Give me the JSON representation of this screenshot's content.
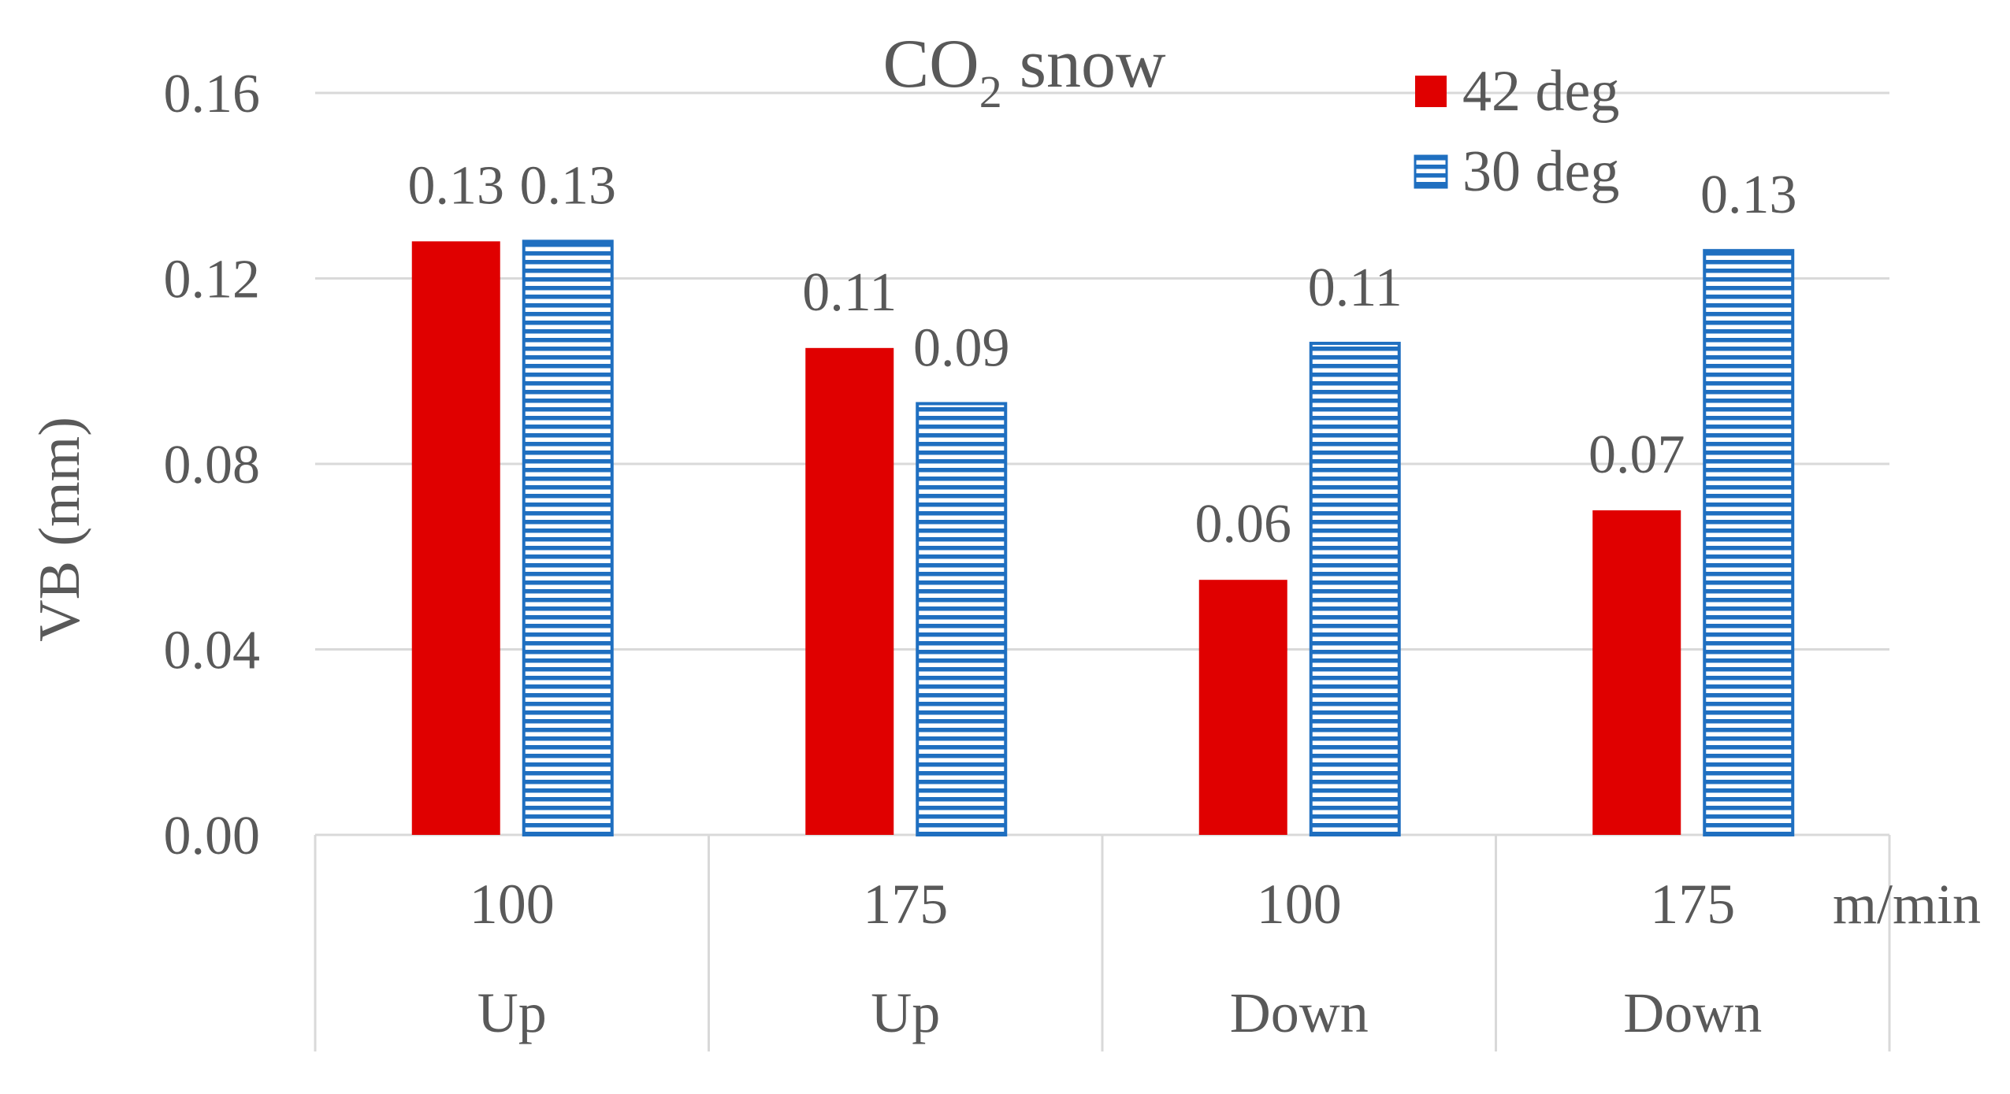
{
  "chart_data": {
    "type": "bar",
    "title": "CO",
    "title_subscript": "2",
    "title_suffix": " snow",
    "ylabel": "VB (mm)",
    "xlabel": "m/min",
    "ylim": [
      0,
      0.16
    ],
    "yticks": [
      "0.00",
      "0.04",
      "0.08",
      "0.12",
      "0.16"
    ],
    "ytick_values": [
      0,
      0.04,
      0.08,
      0.12,
      0.16
    ],
    "grid": true,
    "legend_position": "top-right",
    "categories": [
      {
        "speed": "100",
        "direction": "Up"
      },
      {
        "speed": "175",
        "direction": "Up"
      },
      {
        "speed": "100",
        "direction": "Down"
      },
      {
        "speed": "175",
        "direction": "Down"
      }
    ],
    "series": [
      {
        "name": "42 deg",
        "color": "#e00000",
        "pattern": "solid",
        "values": [
          0.128,
          0.105,
          0.055,
          0.07
        ],
        "labels": [
          "0.13",
          "0.11",
          "0.06",
          "0.07"
        ]
      },
      {
        "name": "30 deg",
        "color": "#1f6fc0",
        "pattern": "horizontal-stripes",
        "values": [
          0.128,
          0.093,
          0.106,
          0.126
        ],
        "labels": [
          "0.13",
          "0.09",
          "0.11",
          "0.13"
        ]
      }
    ]
  }
}
